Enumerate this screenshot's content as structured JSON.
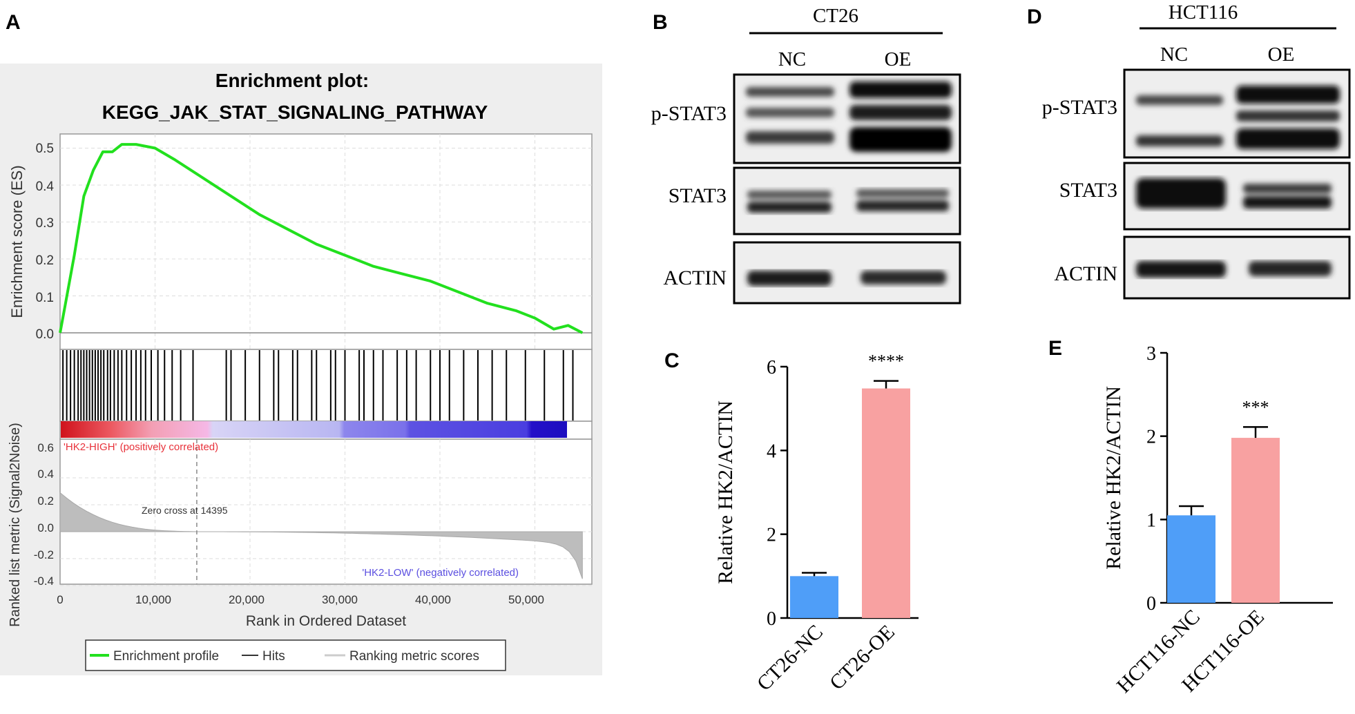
{
  "panel_labels": {
    "a": "A",
    "b": "B",
    "c": "C",
    "d": "D",
    "e": "E"
  },
  "gsea": {
    "title_line1": "Enrichment plot:",
    "title_line2": "KEGG_JAK_STAT_SIGNALING_PATHWAY",
    "es_ylabel": "Enrichment score (ES)",
    "es_yticks": [
      "0.5",
      "0.4",
      "0.3",
      "0.2",
      "0.1",
      "0.0"
    ],
    "metric_ylabel_line1": "Ranked list metric (Signal2Noise)",
    "metric_yticks": [
      "0.6",
      "0.4",
      "0.2",
      "0.0",
      "-0.2",
      "-0.4"
    ],
    "high_label": "'HK2-HIGH' (positively correlated)",
    "low_label": "'HK2-LOW' (negatively correlated)",
    "zero_cross": "Zero cross at 14395",
    "xticks": [
      "0",
      "10,000",
      "20,000",
      "30,000",
      "40,000",
      "50,000"
    ],
    "xlabel": "Rank in Ordered Dataset",
    "legend": [
      "Enrichment profile",
      "Hits",
      "Ranking metric scores"
    ],
    "colors": {
      "profile": "#22e01e",
      "high": "#e8313a",
      "low": "#1d0fc4"
    }
  },
  "blot_ct26": {
    "title": "CT26",
    "lanes": [
      "NC",
      "OE"
    ],
    "rows": [
      "p-STAT3",
      "STAT3",
      "ACTIN"
    ]
  },
  "blot_hct116": {
    "title": "HCT116",
    "lanes": [
      "NC",
      "OE"
    ],
    "rows": [
      "p-STAT3",
      "STAT3",
      "ACTIN"
    ]
  },
  "chart_data": [
    {
      "type": "line",
      "panel": "A",
      "title": "Enrichment plot: KEGG_JAK_STAT_SIGNALING_PATHWAY",
      "xlabel": "Rank in Ordered Dataset",
      "ylabel": "Enrichment score (ES)",
      "xlim": [
        0,
        56000
      ],
      "ylim": [
        -0.02,
        0.53
      ],
      "x": [
        0,
        500,
        1500,
        2500,
        3500,
        4500,
        5500,
        6500,
        8000,
        10000,
        12000,
        15000,
        18000,
        21000,
        24000,
        27000,
        30000,
        33000,
        36000,
        39000,
        42000,
        45000,
        48000,
        50000,
        52000,
        53500,
        55000
      ],
      "series": [
        {
          "name": "Enrichment profile",
          "values": [
            0.0,
            0.07,
            0.21,
            0.37,
            0.44,
            0.49,
            0.49,
            0.51,
            0.51,
            0.5,
            0.47,
            0.42,
            0.37,
            0.32,
            0.28,
            0.24,
            0.21,
            0.18,
            0.16,
            0.14,
            0.11,
            0.08,
            0.06,
            0.04,
            0.01,
            0.02,
            0.0
          ]
        }
      ],
      "hits": [
        300,
        700,
        1100,
        1500,
        1900,
        2200,
        2500,
        2800,
        3100,
        3400,
        3700,
        4000,
        4300,
        4600,
        5000,
        5300,
        5700,
        6100,
        6500,
        7000,
        7500,
        8000,
        8500,
        9000,
        9600,
        10300,
        11000,
        11800,
        12700,
        14000,
        17500,
        18000,
        19500,
        21000,
        22500,
        23000,
        24500,
        25000,
        26500,
        27000,
        28500,
        29000,
        30000,
        31500,
        32000,
        33000,
        34000,
        35500,
        36500,
        37500,
        39000,
        40000,
        41000,
        42500,
        44000,
        45500,
        47000,
        49000,
        51000,
        53000,
        54000
      ],
      "metric_ylim": [
        -0.4,
        0.6
      ],
      "metric_zero_cross": 14395,
      "legend": "bottom"
    },
    {
      "type": "bar",
      "panel": "C",
      "categories": [
        "CT26-NC",
        "CT26-OE"
      ],
      "values": [
        1.0,
        5.48
      ],
      "errors": [
        0.08,
        0.18
      ],
      "colors": [
        "#4f9ef8",
        "#f8a1a1"
      ],
      "ylabel": "Relative HK2/ACTIN",
      "ylim": [
        0,
        6
      ],
      "yticks": [
        "0",
        "2",
        "4",
        "6"
      ],
      "significance": "****"
    },
    {
      "type": "bar",
      "panel": "E",
      "categories": [
        "HCT116-NC",
        "HCT116-OE"
      ],
      "values": [
        1.05,
        1.98
      ],
      "errors": [
        0.11,
        0.13
      ],
      "colors": [
        "#4f9ef8",
        "#f8a1a1"
      ],
      "ylabel": "Relative HK2/ACTIN",
      "ylim": [
        0,
        3
      ],
      "yticks": [
        "0",
        "1",
        "2",
        "3"
      ],
      "significance": "***"
    }
  ]
}
